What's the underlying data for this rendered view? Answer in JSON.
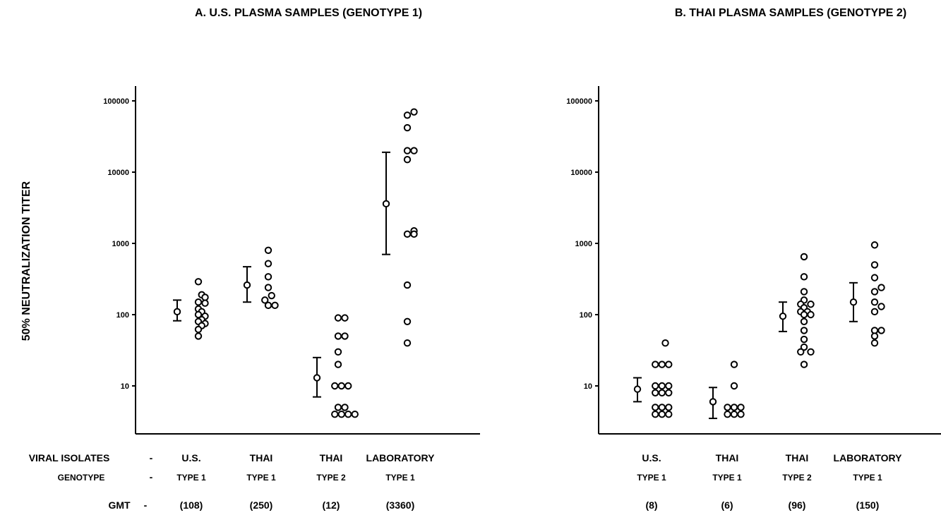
{
  "ylabel": "50% NEUTRALIZATION TITER",
  "row_labels": {
    "isolates": "VIRAL ISOLATES",
    "genotype": "GENOTYPE",
    "gmt": "GMT",
    "dash": "-"
  },
  "chart_data": [
    {
      "type": "scatter",
      "title": "A. U.S. PLASMA SAMPLES (GENOTYPE 1)",
      "ylabel": "50% NEUTRALIZATION TITER",
      "yscale": "log",
      "ylim": [
        3,
        120000
      ],
      "yticks": [
        10,
        100,
        1000,
        10000,
        100000
      ],
      "ytick_labels": [
        "10",
        "100",
        "1000",
        "10000",
        "100000"
      ],
      "grid": false,
      "groups": [
        {
          "isolate": "U.S.",
          "genotype": "TYPE 1",
          "gmt": "(108)",
          "gm": 110,
          "err_low": 82,
          "err_high": 160,
          "points": [
            [
              0,
              290
            ],
            [
              0.5,
              190
            ],
            [
              1,
              175
            ],
            [
              0,
              150
            ],
            [
              1,
              145
            ],
            [
              0,
              120
            ],
            [
              0.5,
              110
            ],
            [
              0,
              100
            ],
            [
              1,
              95
            ],
            [
              0.5,
              85
            ],
            [
              0,
              80
            ],
            [
              1,
              75
            ],
            [
              0.5,
              70
            ],
            [
              0,
              62
            ],
            [
              0,
              50
            ]
          ]
        },
        {
          "isolate": "THAI",
          "genotype": "TYPE 1",
          "gmt": "(250)",
          "gm": 260,
          "err_low": 150,
          "err_high": 470,
          "points": [
            [
              0,
              800
            ],
            [
              0,
              520
            ],
            [
              0,
              340
            ],
            [
              0,
              240
            ],
            [
              0.5,
              185
            ],
            [
              -0.5,
              160
            ],
            [
              0,
              135
            ],
            [
              1,
              135
            ]
          ]
        },
        {
          "isolate": "THAI",
          "genotype": "TYPE 2",
          "gmt": "(12)",
          "gm": 13,
          "err_low": 7,
          "err_high": 25,
          "points": [
            [
              0,
              90
            ],
            [
              1,
              90
            ],
            [
              0,
              50
            ],
            [
              1,
              50
            ],
            [
              0,
              30
            ],
            [
              0,
              20
            ],
            [
              -0.5,
              10
            ],
            [
              0.5,
              10
            ],
            [
              1.5,
              10
            ],
            [
              0,
              5
            ],
            [
              1,
              5
            ],
            [
              -0.5,
              4
            ],
            [
              0.5,
              4
            ],
            [
              1.5,
              4
            ],
            [
              2.5,
              4
            ]
          ]
        },
        {
          "isolate": "LABORATORY",
          "genotype": "TYPE 1",
          "gmt": "(3360)",
          "gm": 3600,
          "err_low": 700,
          "err_high": 19000,
          "points": [
            [
              1,
              70000
            ],
            [
              0,
              63000
            ],
            [
              0,
              42000
            ],
            [
              0,
              20000
            ],
            [
              1,
              20000
            ],
            [
              0,
              15000
            ],
            [
              1,
              1500
            ],
            [
              0,
              1350
            ],
            [
              1,
              1350
            ],
            [
              0,
              260
            ],
            [
              0,
              80
            ],
            [
              0,
              40
            ]
          ]
        }
      ]
    },
    {
      "type": "scatter",
      "title": "B. THAI PLASMA SAMPLES (GENOTYPE 2)",
      "yscale": "log",
      "ylim": [
        3,
        120000
      ],
      "yticks": [
        10,
        100,
        1000,
        10000,
        100000
      ],
      "ytick_labels": [
        "10",
        "100",
        "1000",
        "10000",
        "100000"
      ],
      "grid": false,
      "groups": [
        {
          "isolate": "U.S.",
          "genotype": "TYPE 1",
          "gmt": "(8)",
          "gm": 9,
          "err_low": 6,
          "err_high": 13,
          "points": [
            [
              1,
              40
            ],
            [
              -0.5,
              20
            ],
            [
              0.5,
              20
            ],
            [
              1.5,
              20
            ],
            [
              -0.5,
              10
            ],
            [
              0.5,
              10
            ],
            [
              1.5,
              10
            ],
            [
              -0.5,
              8
            ],
            [
              0.5,
              8
            ],
            [
              1.5,
              8
            ],
            [
              -0.5,
              5
            ],
            [
              0.5,
              5
            ],
            [
              1.5,
              5
            ],
            [
              -0.5,
              4
            ],
            [
              0.5,
              4
            ],
            [
              1.5,
              4
            ]
          ]
        },
        {
          "isolate": "THAI",
          "genotype": "TYPE 1",
          "gmt": "(6)",
          "gm": 6,
          "err_low": 3.5,
          "err_high": 9.5,
          "points": [
            [
              0,
              20
            ],
            [
              0,
              10
            ],
            [
              -1,
              5
            ],
            [
              0,
              5
            ],
            [
              1,
              5
            ],
            [
              -1,
              4
            ],
            [
              0,
              4
            ],
            [
              1,
              4
            ]
          ]
        },
        {
          "isolate": "THAI",
          "genotype": "TYPE 2",
          "gmt": "(96)",
          "gm": 95,
          "err_low": 58,
          "err_high": 150,
          "points": [
            [
              0,
              650
            ],
            [
              0,
              340
            ],
            [
              0,
              210
            ],
            [
              0,
              160
            ],
            [
              -0.5,
              140
            ],
            [
              1,
              140
            ],
            [
              0,
              125
            ],
            [
              -0.5,
              110
            ],
            [
              0.5,
              110
            ],
            [
              0,
              100
            ],
            [
              1,
              100
            ],
            [
              0,
              80
            ],
            [
              0,
              60
            ],
            [
              0,
              45
            ],
            [
              0,
              35
            ],
            [
              -0.5,
              30
            ],
            [
              1,
              30
            ],
            [
              0,
              20
            ]
          ]
        },
        {
          "isolate": "LABORATORY",
          "genotype": "TYPE 1",
          "gmt": "(150)",
          "gm": 150,
          "err_low": 80,
          "err_high": 280,
          "points": [
            [
              0,
              950
            ],
            [
              0,
              500
            ],
            [
              0,
              330
            ],
            [
              1,
              240
            ],
            [
              0,
              210
            ],
            [
              0,
              150
            ],
            [
              1,
              130
            ],
            [
              0,
              110
            ],
            [
              0,
              60
            ],
            [
              1,
              60
            ],
            [
              0,
              50
            ],
            [
              0,
              40
            ]
          ]
        }
      ]
    }
  ]
}
